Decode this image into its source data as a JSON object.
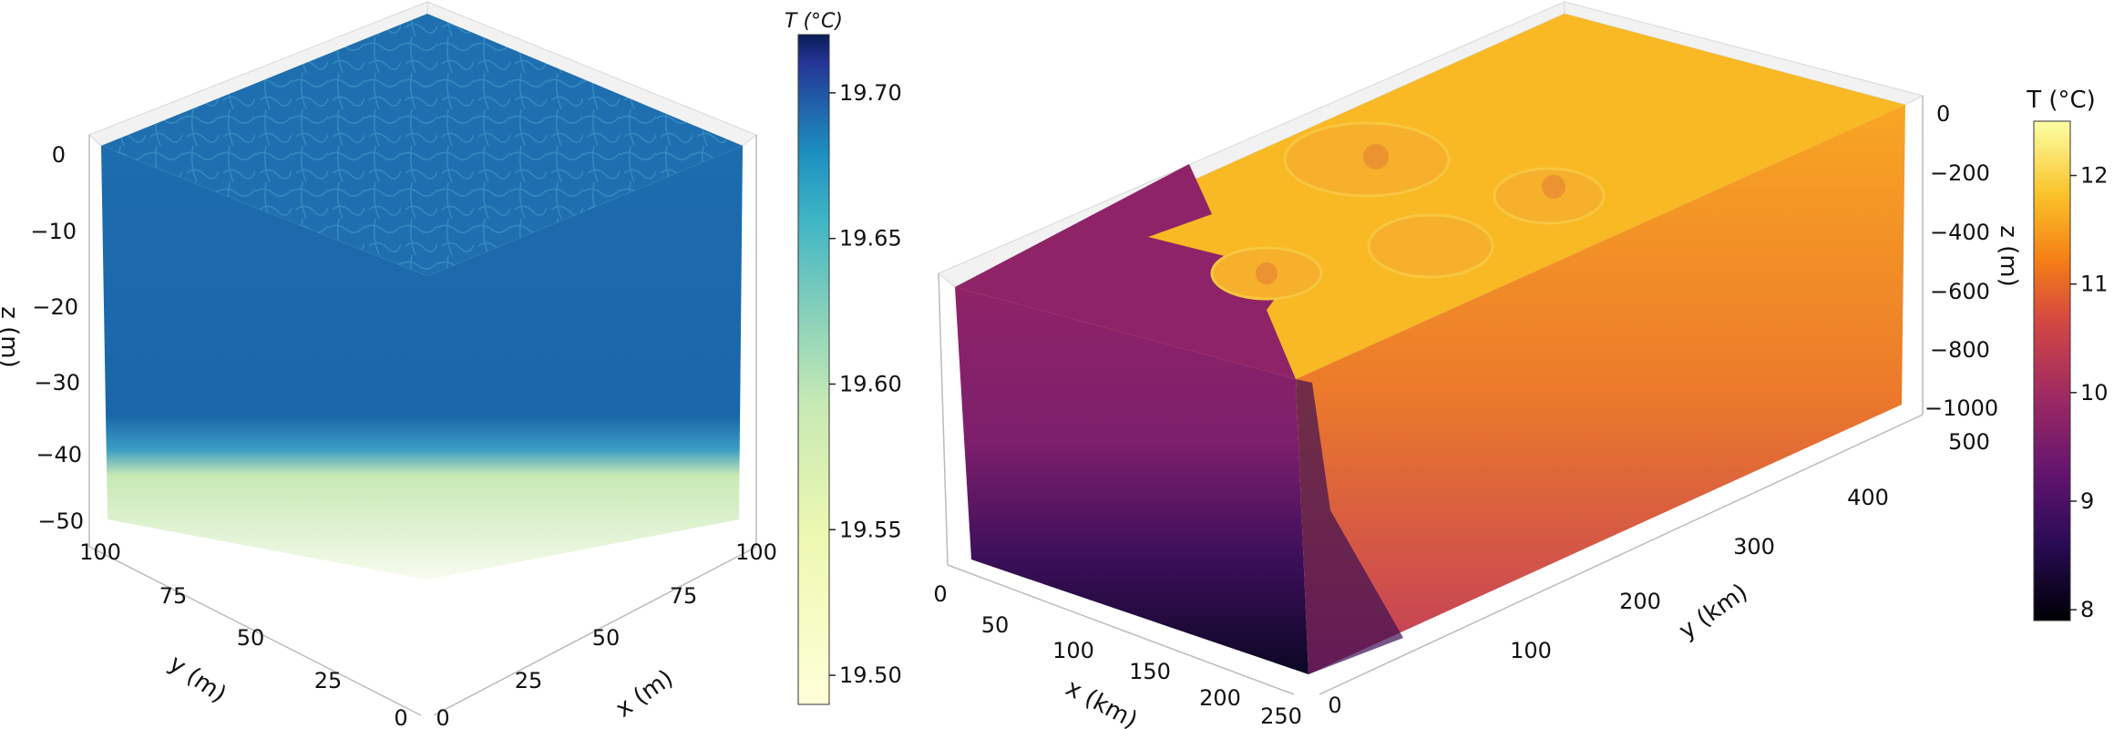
{
  "chart_data": [
    {
      "type": "volume-3d",
      "title": "",
      "colormap": "YlGnBu",
      "xlabel": "x (m)",
      "ylabel": "y (m)",
      "zlabel": "z (m)",
      "xticks": [
        "0",
        "25",
        "50",
        "75",
        "100"
      ],
      "yticks": [
        "0",
        "25",
        "50",
        "75",
        "100"
      ],
      "zticks": [
        "0",
        "−10",
        "−20",
        "−30",
        "−40",
        "−50"
      ],
      "xlim": [
        0,
        100
      ],
      "ylim": [
        0,
        100
      ],
      "zlim": [
        -50,
        0
      ],
      "colorbar": {
        "label": "T (°C)",
        "ticks": [
          "19.50",
          "19.55",
          "19.60",
          "19.65",
          "19.70"
        ],
        "range": [
          19.49,
          19.72
        ]
      },
      "colors": {
        "deep": "#f7fcd8",
        "mid": "#7fcdbb",
        "mixed": "#1c6aad",
        "max": "#081d58"
      }
    },
    {
      "type": "volume-3d",
      "title": "",
      "colormap": "inferno",
      "xlabel": "x (km)",
      "ylabel": "y (km)",
      "zlabel": "z (m)",
      "xticks": [
        "0",
        "50",
        "100",
        "150",
        "200",
        "250"
      ],
      "yticks": [
        "0",
        "100",
        "200",
        "300",
        "400",
        "500"
      ],
      "zticks": [
        "0",
        "−200",
        "−400",
        "−600",
        "−800",
        "−1000"
      ],
      "xlim": [
        0,
        250
      ],
      "ylim": [
        0,
        500
      ],
      "zlim": [
        -1000,
        0
      ],
      "colorbar": {
        "label": "T (°C)",
        "ticks": [
          "8",
          "9",
          "10",
          "11",
          "12"
        ],
        "range": [
          7.9,
          12.5
        ]
      },
      "colors": {
        "warm": "#f8b925",
        "cold_surface": "#8f2368",
        "cold_deep": "#0c0724",
        "warm_deep": "#c9425a"
      }
    }
  ]
}
